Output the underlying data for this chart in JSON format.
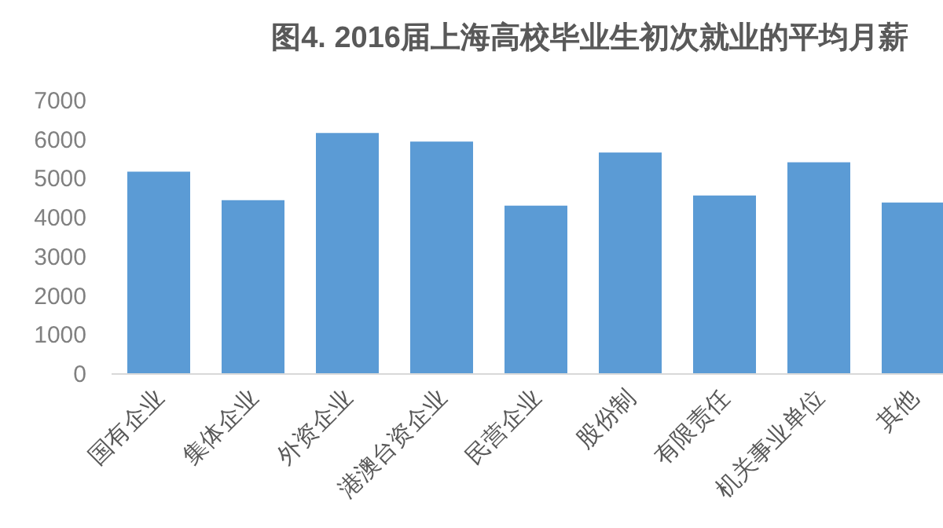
{
  "chart_data": {
    "type": "bar",
    "title": "图4. 2016届上海高校毕业生初次就业的平均月薪",
    "categories": [
      "国有企业",
      "集体企业",
      "外资企业",
      "港澳台资企业",
      "民营企业",
      "股份制",
      "有限责任",
      "机关事业单位",
      "其他"
    ],
    "values": [
      5180,
      4450,
      6170,
      5950,
      4310,
      5670,
      4570,
      5420,
      4390
    ],
    "color": "#5b9bd5",
    "ylim": [
      0,
      7000
    ],
    "yticks": [
      0,
      1000,
      2000,
      3000,
      4000,
      5000,
      6000,
      7000
    ],
    "grid": false
  }
}
